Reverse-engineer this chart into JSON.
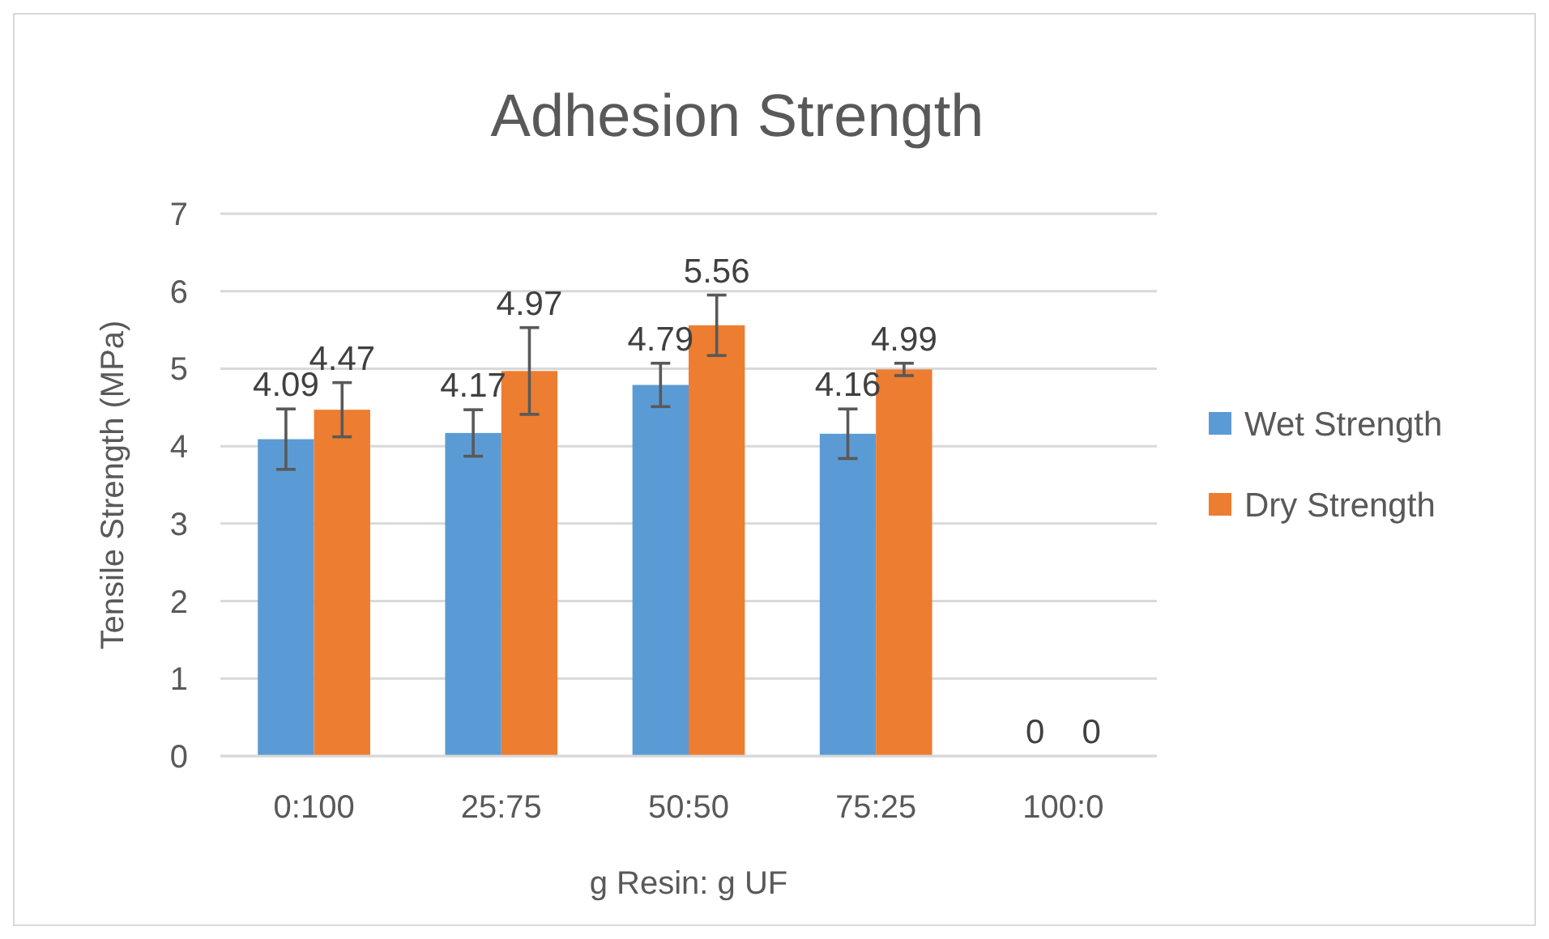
{
  "chart_data": {
    "type": "bar",
    "title": "Adhesion Strength",
    "xlabel": "g Resin: g UF",
    "ylabel": "Tensile Strength (MPa)",
    "categories": [
      "0:100",
      "25:75",
      "50:50",
      "75:25",
      "100:0"
    ],
    "series": [
      {
        "name": "Wet Strength",
        "color": "#5b9bd5",
        "values": [
          4.09,
          4.17,
          4.79,
          4.16,
          0
        ],
        "errors": [
          0.39,
          0.3,
          0.28,
          0.32,
          null
        ]
      },
      {
        "name": "Dry Strength",
        "color": "#ed7d31",
        "values": [
          4.47,
          4.97,
          5.56,
          4.99,
          0
        ],
        "errors": [
          0.35,
          0.56,
          0.39,
          0.08,
          null
        ]
      }
    ],
    "ylim": [
      0,
      7
    ],
    "yticks": [
      0,
      1,
      2,
      3,
      4,
      5,
      6,
      7
    ],
    "grid": "y",
    "legend": "right",
    "data_labels": true
  }
}
